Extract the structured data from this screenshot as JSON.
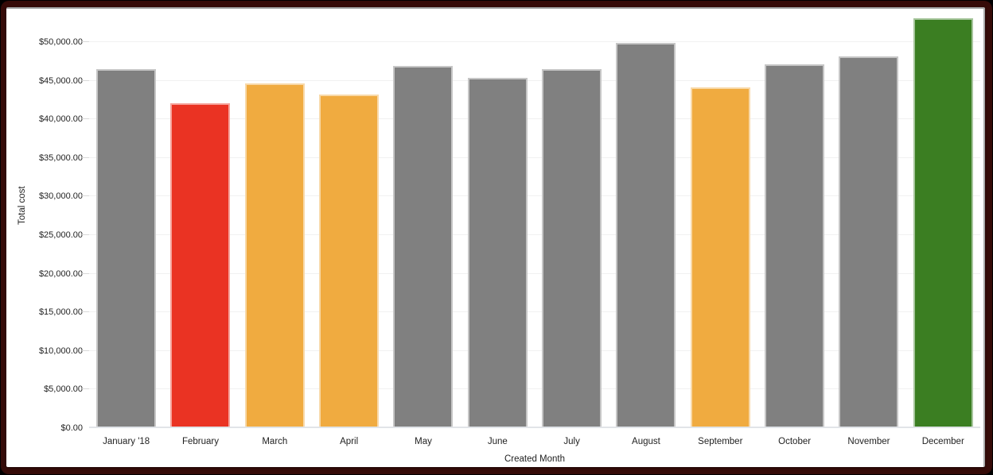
{
  "window": {
    "frame_color": "#360b08",
    "card_background": "#ffffff"
  },
  "chart_data": {
    "type": "bar",
    "title": "",
    "xlabel": "Created Month",
    "ylabel": "Total cost",
    "categories": [
      "January '18",
      "February",
      "March",
      "April",
      "May",
      "June",
      "July",
      "August",
      "September",
      "October",
      "November",
      "December"
    ],
    "values": [
      46500,
      42100,
      44700,
      43200,
      46900,
      45400,
      46500,
      49900,
      44100,
      47100,
      48100,
      53100
    ],
    "bar_colors": [
      "#808080",
      "#EA3323",
      "#F0AB40",
      "#F0AB40",
      "#808080",
      "#808080",
      "#808080",
      "#808080",
      "#F0AB40",
      "#808080",
      "#808080",
      "#3B7E22"
    ],
    "color_legend": {
      "default": "#808080",
      "red": "#EA3323",
      "orange": "#F0AB40",
      "green": "#3B7E22"
    },
    "y_ticks": [
      {
        "value": 0,
        "label": "$0.00"
      },
      {
        "value": 5000,
        "label": "$5,000.00"
      },
      {
        "value": 10000,
        "label": "$10,000.00"
      },
      {
        "value": 15000,
        "label": "$15,000.00"
      },
      {
        "value": 20000,
        "label": "$20,000.00"
      },
      {
        "value": 25000,
        "label": "$25,000.00"
      },
      {
        "value": 30000,
        "label": "$30,000.00"
      },
      {
        "value": 35000,
        "label": "$35,000.00"
      },
      {
        "value": 40000,
        "label": "$40,000.00"
      },
      {
        "value": 45000,
        "label": "$45,000.00"
      },
      {
        "value": 50000,
        "label": "$50,000.00"
      }
    ],
    "ylim": [
      0,
      50000
    ],
    "grid": true,
    "legend_position": "none"
  }
}
